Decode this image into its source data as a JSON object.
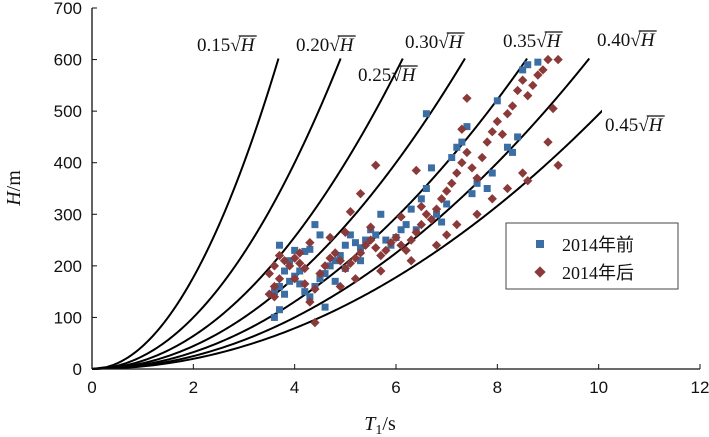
{
  "chart_data": {
    "type": "scatter",
    "xlabel_main": "T",
    "xlabel_sub": "1",
    "xlabel_unit": "/s",
    "ylabel_main": "H",
    "ylabel_unit": "/m",
    "xlim": [
      0,
      12
    ],
    "ylim": [
      0,
      700
    ],
    "x_ticks": [
      0,
      2,
      4,
      6,
      8,
      10,
      12
    ],
    "y_ticks": [
      0,
      100,
      200,
      300,
      400,
      500,
      600,
      700
    ],
    "grid": false,
    "legend_position": "right",
    "reference_curves": [
      {
        "coef": 0.15,
        "label_prefix": "0.15",
        "label_var": "H"
      },
      {
        "coef": 0.2,
        "label_prefix": "0.20",
        "label_var": "H"
      },
      {
        "coef": 0.25,
        "label_prefix": "0.25",
        "label_var": "H"
      },
      {
        "coef": 0.3,
        "label_prefix": "0.30",
        "label_var": "H"
      },
      {
        "coef": 0.35,
        "label_prefix": "0.35",
        "label_var": "H"
      },
      {
        "coef": 0.4,
        "label_prefix": "0.40",
        "label_var": "H"
      },
      {
        "coef": 0.45,
        "label_prefix": "0.45",
        "label_var": "H"
      }
    ],
    "series": [
      {
        "name": "2014年前",
        "color": "#3a6ea5",
        "marker": "square",
        "points": [
          [
            3.6,
            100
          ],
          [
            3.7,
            115
          ],
          [
            3.6,
            150
          ],
          [
            3.7,
            160
          ],
          [
            3.8,
            145
          ],
          [
            3.9,
            170
          ],
          [
            3.8,
            190
          ],
          [
            3.9,
            210
          ],
          [
            4.0,
            230
          ],
          [
            4.2,
            228
          ],
          [
            4.3,
            232
          ],
          [
            4.0,
            180
          ],
          [
            4.1,
            165
          ],
          [
            4.2,
            150
          ],
          [
            4.3,
            140
          ],
          [
            4.4,
            160
          ],
          [
            4.5,
            175
          ],
          [
            4.6,
            185
          ],
          [
            4.7,
            200
          ],
          [
            4.8,
            210
          ],
          [
            4.9,
            220
          ],
          [
            5.0,
            240
          ],
          [
            5.1,
            260
          ],
          [
            5.2,
            245
          ],
          [
            5.3,
            235
          ],
          [
            5.4,
            250
          ],
          [
            5.5,
            270
          ],
          [
            5.6,
            260
          ],
          [
            5.8,
            250
          ],
          [
            5.9,
            240
          ],
          [
            6.0,
            255
          ],
          [
            6.1,
            270
          ],
          [
            6.2,
            280
          ],
          [
            6.3,
            310
          ],
          [
            6.5,
            330
          ],
          [
            6.6,
            350
          ],
          [
            6.7,
            390
          ],
          [
            6.8,
            300
          ],
          [
            6.9,
            285
          ],
          [
            7.0,
            320
          ],
          [
            7.1,
            410
          ],
          [
            7.2,
            430
          ],
          [
            7.3,
            440
          ],
          [
            7.4,
            470
          ],
          [
            7.6,
            360
          ],
          [
            7.8,
            350
          ],
          [
            7.9,
            380
          ],
          [
            8.0,
            520
          ],
          [
            8.2,
            430
          ],
          [
            8.3,
            420
          ],
          [
            8.4,
            450
          ],
          [
            8.5,
            580
          ],
          [
            8.6,
            590
          ],
          [
            8.8,
            595
          ],
          [
            6.6,
            495
          ],
          [
            4.6,
            120
          ],
          [
            4.5,
            260
          ],
          [
            4.4,
            280
          ],
          [
            5.7,
            300
          ],
          [
            3.7,
            240
          ],
          [
            4.1,
            190
          ],
          [
            4.8,
            170
          ],
          [
            5.0,
            195
          ],
          [
            5.3,
            210
          ],
          [
            6.4,
            270
          ],
          [
            7.5,
            340
          ]
        ]
      },
      {
        "name": "2014年后",
        "color": "#8b3a3a",
        "marker": "diamond",
        "points": [
          [
            3.5,
            145
          ],
          [
            3.6,
            160
          ],
          [
            3.7,
            175
          ],
          [
            3.5,
            185
          ],
          [
            3.6,
            200
          ],
          [
            3.8,
            210
          ],
          [
            3.7,
            220
          ],
          [
            3.9,
            200
          ],
          [
            4.0,
            215
          ],
          [
            4.1,
            205
          ],
          [
            4.2,
            195
          ],
          [
            4.0,
            175
          ],
          [
            4.2,
            165
          ],
          [
            4.4,
            155
          ],
          [
            4.3,
            130
          ],
          [
            4.5,
            185
          ],
          [
            4.6,
            200
          ],
          [
            4.7,
            215
          ],
          [
            4.8,
            225
          ],
          [
            4.9,
            210
          ],
          [
            5.0,
            195
          ],
          [
            5.1,
            205
          ],
          [
            5.2,
            215
          ],
          [
            5.3,
            225
          ],
          [
            5.4,
            240
          ],
          [
            5.5,
            250
          ],
          [
            5.6,
            235
          ],
          [
            5.7,
            220
          ],
          [
            5.8,
            230
          ],
          [
            5.9,
            245
          ],
          [
            6.0,
            255
          ],
          [
            6.1,
            240
          ],
          [
            6.2,
            230
          ],
          [
            6.3,
            250
          ],
          [
            6.4,
            265
          ],
          [
            6.5,
            280
          ],
          [
            6.6,
            300
          ],
          [
            6.7,
            290
          ],
          [
            6.8,
            310
          ],
          [
            6.9,
            330
          ],
          [
            7.0,
            345
          ],
          [
            7.1,
            360
          ],
          [
            7.2,
            380
          ],
          [
            7.3,
            400
          ],
          [
            7.4,
            420
          ],
          [
            7.5,
            390
          ],
          [
            7.6,
            370
          ],
          [
            7.7,
            410
          ],
          [
            7.8,
            440
          ],
          [
            7.9,
            460
          ],
          [
            8.0,
            480
          ],
          [
            8.1,
            455
          ],
          [
            8.2,
            495
          ],
          [
            8.3,
            510
          ],
          [
            8.4,
            540
          ],
          [
            8.5,
            560
          ],
          [
            8.6,
            530
          ],
          [
            8.7,
            550
          ],
          [
            8.8,
            570
          ],
          [
            8.9,
            580
          ],
          [
            9.0,
            600
          ],
          [
            9.1,
            505
          ],
          [
            9.2,
            600
          ],
          [
            8.6,
            365
          ],
          [
            7.3,
            465
          ],
          [
            7.4,
            525
          ],
          [
            5.1,
            305
          ],
          [
            5.3,
            340
          ],
          [
            5.6,
            395
          ],
          [
            6.4,
            385
          ],
          [
            4.4,
            90
          ],
          [
            3.6,
            140
          ],
          [
            4.9,
            160
          ],
          [
            5.2,
            175
          ],
          [
            5.7,
            190
          ],
          [
            6.3,
            210
          ],
          [
            6.8,
            240
          ],
          [
            7.0,
            260
          ],
          [
            7.2,
            280
          ],
          [
            7.6,
            300
          ],
          [
            7.9,
            330
          ],
          [
            8.2,
            350
          ],
          [
            8.5,
            380
          ],
          [
            9.2,
            395
          ],
          [
            9.0,
            440
          ],
          [
            4.1,
            225
          ],
          [
            4.3,
            245
          ],
          [
            4.7,
            255
          ],
          [
            5.0,
            265
          ],
          [
            5.5,
            275
          ],
          [
            6.1,
            295
          ],
          [
            6.5,
            315
          ]
        ]
      }
    ]
  }
}
